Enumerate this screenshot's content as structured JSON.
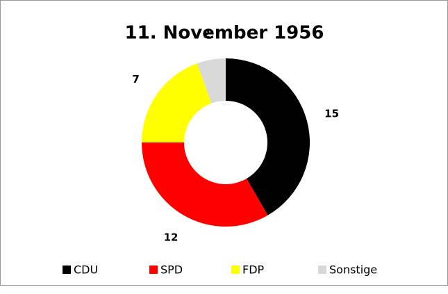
{
  "chart_data": {
    "type": "donut",
    "title": "11. November 1956",
    "categories": [
      "CDU",
      "SPD",
      "FDP",
      "Sonstige"
    ],
    "values": [
      15,
      12,
      7,
      2
    ],
    "colors": [
      "#000000",
      "#ff0000",
      "#ffff00",
      "#d9d9d9"
    ],
    "legend": "bottom"
  }
}
